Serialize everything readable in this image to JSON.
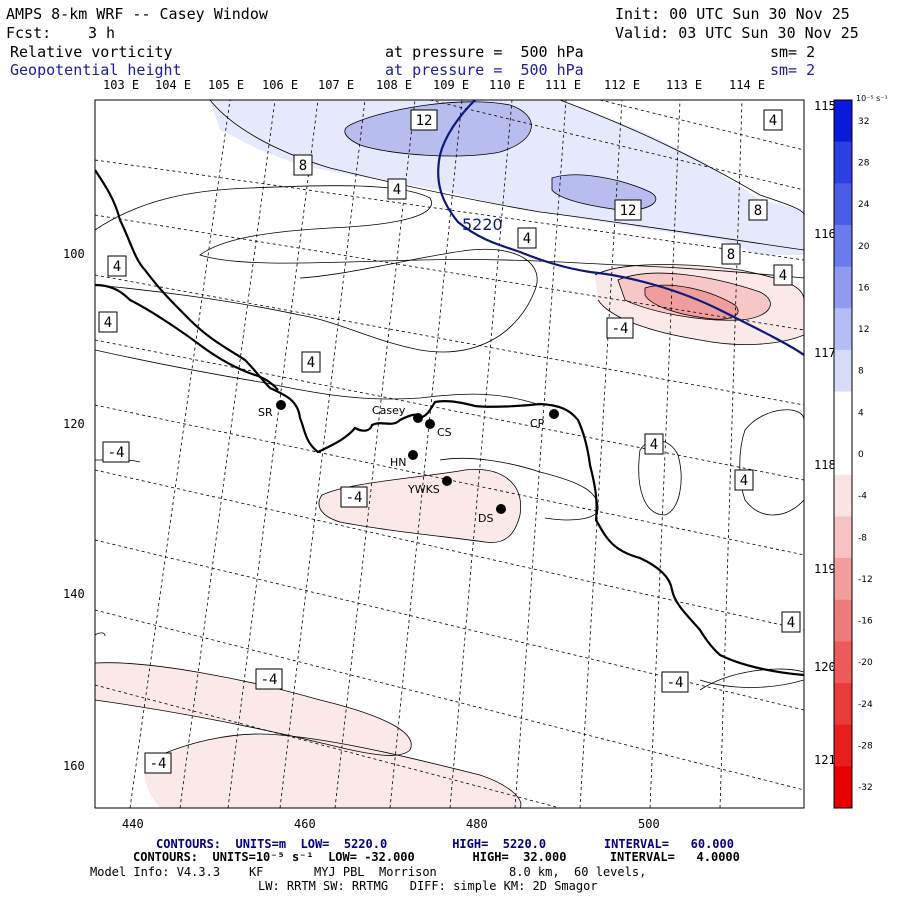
{
  "header": {
    "title": "AMPS 8-km WRF -- Casey Window",
    "init": "Init: 00 UTC Sun 30 Nov 25",
    "fcst_label": "Fcst:",
    "fcst_value": "3 h",
    "valid": "Valid: 03 UTC Sun 30 Nov 25",
    "field1_name": "Relative vorticity",
    "field1_level": "at pressure =  500 hPa",
    "field1_sm": "sm= 2",
    "field2_name": "Geopotential height",
    "field2_level": "at pressure =  500 hPa",
    "field2_sm": "sm= 2"
  },
  "map": {
    "lon_top_labels": [
      "103 E",
      "104 E",
      "105 E",
      "106 E",
      "107 E",
      "108 E",
      "109 E",
      "110 E",
      "111 E",
      "112 E",
      "113 E",
      "114 E"
    ],
    "lon_right_labels": [
      "115 E",
      "116 E",
      "117 E",
      "118 E",
      "119 E",
      "120 E",
      "121 E"
    ],
    "x_axis_ticks": [
      "440",
      "460",
      "480",
      "500"
    ],
    "y_axis_ticks": [
      "100",
      "120",
      "140",
      "160"
    ],
    "vorticity_contour_labels": [
      "12",
      "4",
      "8",
      "4",
      "12",
      "8",
      "8",
      "4",
      "4",
      "-4",
      "4",
      "-4",
      "-4",
      "4",
      "4",
      "4",
      "-4",
      "-4",
      "4"
    ],
    "height_contour_label": "5220",
    "stations": [
      {
        "name": "SR"
      },
      {
        "name": "Casey"
      },
      {
        "name": "CS"
      },
      {
        "name": "CP"
      },
      {
        "name": "HN"
      },
      {
        "name": "YWKS"
      },
      {
        "name": "DS"
      }
    ],
    "colors": {
      "height_contour": "#0b1a7a",
      "coast": "#000000",
      "positive_light": "#e6e8fb",
      "positive_mid": "#b8bdf0",
      "negative_light": "#fbe8e8",
      "negative_mid": "#f7c7c7",
      "negative_strong": "#ef9d9d"
    }
  },
  "colorbar": {
    "unit": "10⁻⁵ s⁻¹",
    "ticks": [
      "32",
      "28",
      "24",
      "20",
      "16",
      "12",
      "8",
      "4",
      "0",
      "-4",
      "-8",
      "-12",
      "-16",
      "-20",
      "-24",
      "-28",
      "-32"
    ],
    "swatches": [
      "#0a1ad8",
      "#2c3fe0",
      "#4a5de6",
      "#6a7bec",
      "#8e9bf1",
      "#b4bdf6",
      "#d6dbfa",
      "#ffffff",
      "#ffffff",
      "#fbe3e3",
      "#f6c2c2",
      "#f29c9c",
      "#ee7b7b",
      "#ec5a5a",
      "#ea3a3a",
      "#e81e1e",
      "#e80000"
    ]
  },
  "footer": {
    "line1": "CONTOURS:  UNITS=m  LOW=  5220.0         HIGH=  5220.0        INTERVAL=   60.000",
    "line2": "CONTOURS:  UNITS=10⁻⁵ s⁻¹  LOW= -32.000        HIGH=  32.000      INTERVAL=   4.0000",
    "line3": "Model Info: V4.3.3    KF       MYJ PBL  Morrison          8.0 km,  60 levels,",
    "line4": "LW: RRTM SW: RRTMG   DIFF: simple KM: 2D Smagor"
  }
}
